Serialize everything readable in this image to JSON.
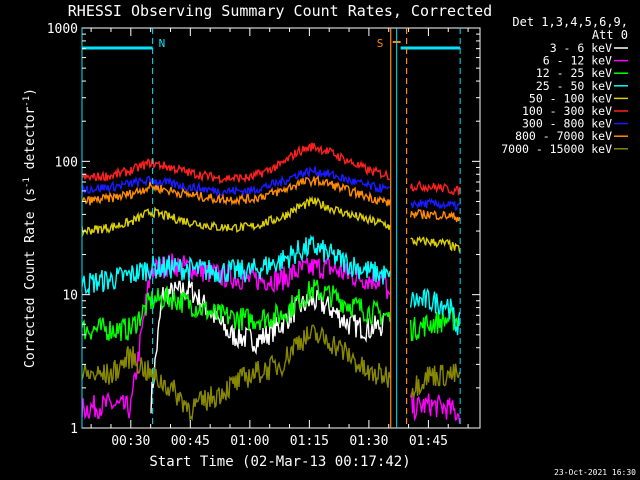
{
  "chart_data": {
    "type": "line",
    "title": "RHESSI Observing Summary Count Rates, Corrected",
    "xlabel": "Start Time (02-Mar-13 00:17:42)",
    "ylabel_main": "Corrected Count Rate (s",
    "ylabel_sup1": "-1",
    "ylabel_mid": " detector",
    "ylabel_sup2": "-1",
    "ylabel_end": ")",
    "y_scale": "log",
    "ylim": [
      1,
      1000
    ],
    "xlim_min": [
      17.7,
      118.0
    ],
    "y_tick_labels": [
      "1",
      "10",
      "100",
      "1000"
    ],
    "x_tick_labels": [
      "00:30",
      "00:45",
      "01:00",
      "01:15",
      "01:30",
      "01:45"
    ],
    "x_tick_values_min": [
      30,
      45,
      60,
      75,
      90,
      105
    ],
    "legend_header": [
      "Det 1,3,4,5,6,9,",
      "Att 0"
    ],
    "legend_placement": "outside-right",
    "footer_date": "23-Oct-2021 16:30",
    "markers": [
      {
        "label": "N",
        "x_min": 35.5,
        "color": "#00e5ff"
      },
      {
        "label": "S",
        "x_min": 96.0,
        "color": "#ff8c00"
      }
    ],
    "night_bar_segments": [
      [
        17.7,
        35.5
      ],
      [
        98.0,
        113.0
      ]
    ],
    "saa_bar": [
      96.0,
      98.0
    ],
    "cyan_vlines_min": [
      17.7,
      35.5,
      97.0,
      113.0
    ],
    "orange_vlines_min": [
      95.5,
      99.5
    ],
    "segments": [
      [
        17.7,
        95.5
      ],
      [
        100.5,
        113.0
      ]
    ],
    "series": [
      {
        "name": "3 - 6 keV",
        "color": "#ffffff",
        "x": [
          18,
          30,
          35,
          38,
          45,
          55,
          62,
          68,
          72,
          76,
          80,
          85,
          90,
          94,
          101,
          105,
          108,
          112
        ],
        "y": [
          null,
          null,
          1.5,
          10,
          11,
          5,
          4.5,
          6,
          8,
          9,
          8,
          6,
          5.5,
          6,
          null,
          null,
          null,
          null
        ]
      },
      {
        "name": "6 - 12 keV",
        "color": "#ff00ff",
        "x": [
          18,
          25,
          30,
          35,
          40,
          45,
          52,
          60,
          68,
          72,
          76,
          80,
          85,
          90,
          94,
          101,
          105,
          110,
          112
        ],
        "y": [
          1.4,
          1.5,
          1.4,
          15,
          17,
          16,
          14,
          13,
          13,
          15,
          16,
          16,
          14,
          13,
          13,
          1.4,
          1.5,
          1.4,
          1.3
        ]
      },
      {
        "name": "12 - 25 keV",
        "color": "#00ff00",
        "x": [
          18,
          30,
          35,
          40,
          45,
          52,
          60,
          68,
          72,
          76,
          80,
          85,
          90,
          94,
          101,
          105,
          110,
          112
        ],
        "y": [
          5.5,
          5.5,
          9,
          9.5,
          8.5,
          7,
          6.5,
          7,
          9,
          11,
          10,
          8.5,
          7.5,
          7,
          5.5,
          6,
          6.5,
          6.5
        ]
      },
      {
        "name": "25 - 50 keV",
        "color": "#00ffff",
        "x": [
          18,
          25,
          30,
          35,
          40,
          45,
          52,
          60,
          68,
          72,
          76,
          80,
          85,
          90,
          94,
          101,
          105,
          110,
          112
        ],
        "y": [
          12,
          13,
          14,
          16,
          16,
          15.5,
          15,
          15,
          18,
          21,
          23,
          20,
          17,
          15,
          14,
          9,
          9,
          8.5,
          6
        ]
      },
      {
        "name": "50 - 100 keV",
        "color": "#ddd000",
        "x": [
          18,
          25,
          30,
          35,
          40,
          45,
          52,
          60,
          68,
          72,
          76,
          80,
          85,
          90,
          94,
          101,
          105,
          110,
          112
        ],
        "y": [
          30,
          32,
          35,
          42,
          38,
          35,
          32,
          32,
          38,
          45,
          50,
          45,
          40,
          36,
          34,
          25,
          25,
          24,
          22
        ]
      },
      {
        "name": "100 - 300 keV",
        "color": "#ff2020",
        "x": [
          18,
          25,
          30,
          35,
          40,
          45,
          52,
          60,
          68,
          72,
          76,
          80,
          85,
          90,
          94,
          101,
          105,
          110,
          112
        ],
        "y": [
          75,
          78,
          85,
          98,
          90,
          82,
          75,
          75,
          95,
          118,
          130,
          118,
          100,
          85,
          80,
          65,
          65,
          62,
          60
        ]
      },
      {
        "name": "300 - 800 keV",
        "color": "#1a1aff",
        "x": [
          18,
          25,
          30,
          35,
          40,
          45,
          52,
          60,
          68,
          72,
          76,
          80,
          85,
          90,
          94,
          101,
          105,
          110,
          112
        ],
        "y": [
          62,
          64,
          68,
          72,
          68,
          64,
          60,
          60,
          70,
          80,
          85,
          80,
          72,
          65,
          62,
          48,
          48,
          47,
          46
        ]
      },
      {
        "name": "800 - 7000 keV",
        "color": "#ff8c00",
        "x": [
          18,
          25,
          30,
          35,
          40,
          45,
          52,
          60,
          68,
          72,
          76,
          80,
          85,
          90,
          94,
          101,
          105,
          110,
          112
        ],
        "y": [
          50,
          53,
          57,
          65,
          60,
          56,
          52,
          52,
          60,
          68,
          72,
          68,
          60,
          54,
          50,
          40,
          40,
          39,
          38
        ]
      },
      {
        "name": "7000 - 15000 keV",
        "color": "#888800",
        "x": [
          18,
          25,
          30,
          35,
          40,
          45,
          52,
          60,
          68,
          72,
          76,
          80,
          85,
          90,
          94,
          101,
          105,
          110,
          112
        ],
        "y": [
          2.5,
          2.5,
          3.5,
          2.5,
          2.0,
          1.4,
          1.8,
          2.5,
          3.0,
          4.5,
          5.0,
          4.5,
          3.5,
          2.5,
          2.5,
          2.0,
          2.5,
          2.5,
          2.5
        ]
      }
    ]
  }
}
